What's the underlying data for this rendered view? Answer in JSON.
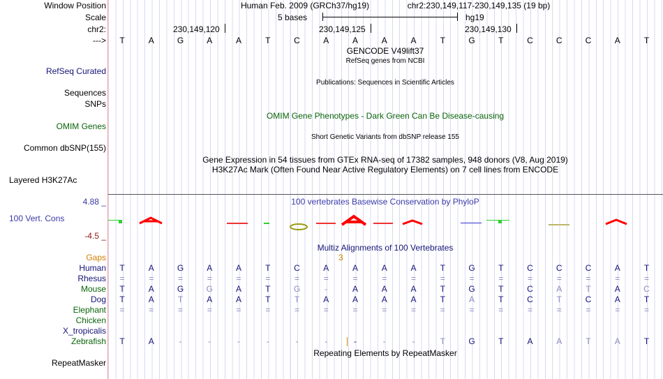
{
  "header": {
    "assembly": "Human Feb. 2009 (GRCh37/hg19)",
    "position": "chr2:230,149,117-230,149,135 (19 bp)",
    "scale_label": "5 bases",
    "scale_db": "hg19",
    "ticks": [
      "230,149,120",
      "230,149,125",
      "230,149,130"
    ]
  },
  "labels": {
    "window_position": "Window Position",
    "scale": "Scale",
    "chr": "chr2:",
    "arrow": "--->",
    "refseq": "RefSeq Curated",
    "sequences": "Sequences",
    "snps": "SNPs",
    "omim_genes": "OMIM Genes",
    "dbsnp": "Common dbSNP(155)",
    "h3k27ac": "Layered H3K27Ac",
    "cons": "100 Vert. Cons",
    "cons_max": "4.88 _",
    "cons_min": "-4.5 _",
    "gaps": "Gaps",
    "repeatmasker": "RepeatMasker"
  },
  "tracks": {
    "gencode": "GENCODE V49lift37",
    "refseq_sub": "RefSeq genes from NCBI",
    "publications": "Publications: Sequences in Scientific Articles",
    "omim_pheno": "OMIM Gene Phenotypes - Dark Green Can Be Disease-causing",
    "short_variants": "Short Genetic Variants from dbSNP release 155",
    "gtex": "Gene Expression in 54 tissues from GTEx RNA-seq of 17382 samples, 948 donors (V8, Aug 2019)",
    "h3k27ac": "H3K27Ac Mark (Often Found Near Active Regulatory Elements) on 7 cell lines from ENCODE",
    "phylop": "100 vertebrates Basewise Conservation by PhyloP",
    "multiz": "Multiz Alignments of 100 Vertebrates",
    "gap_count": "3",
    "repeats": "Repeating Elements by RepeatMasker"
  },
  "sequence": "TAGAATCAAAATGTCCCAT",
  "alignment": [
    {
      "species": "Human",
      "cls": "nv",
      "bases": "TAGAATCAAAATGTCCCAT",
      "faint": []
    },
    {
      "species": "Rhesus",
      "cls": "nv",
      "bases": "===================",
      "faint": "all"
    },
    {
      "species": "Mouse",
      "cls": "gr",
      "bases": "TAGGATG-AAATGTCATAC",
      "faint": [
        3,
        6,
        7,
        15,
        16,
        18
      ]
    },
    {
      "species": "Dog",
      "cls": "nv",
      "bases": "TATAATTAAAATATCTCAT",
      "faint": [
        2,
        6,
        12,
        15
      ]
    },
    {
      "species": "Elephant",
      "cls": "gr",
      "bases": "===================",
      "faint": "all"
    },
    {
      "species": "Chicken",
      "cls": "gr",
      "bases": "",
      "faint": []
    },
    {
      "species": "X_tropicalis",
      "cls": "nv",
      "bases": "",
      "faint": []
    },
    {
      "species": "Zebrafish",
      "cls": "gr",
      "bases": "TA------|---TGTAATAT",
      "faint": [
        2,
        3,
        4,
        5,
        6,
        7,
        9,
        10,
        11,
        15,
        16,
        17
      ]
    }
  ],
  "colors": {
    "label_blue": "#141478",
    "label_green": "#0a640a",
    "gaps": "#d08000",
    "cons_max": "#3a3aa8",
    "cons_min": "#8b1a1a"
  }
}
